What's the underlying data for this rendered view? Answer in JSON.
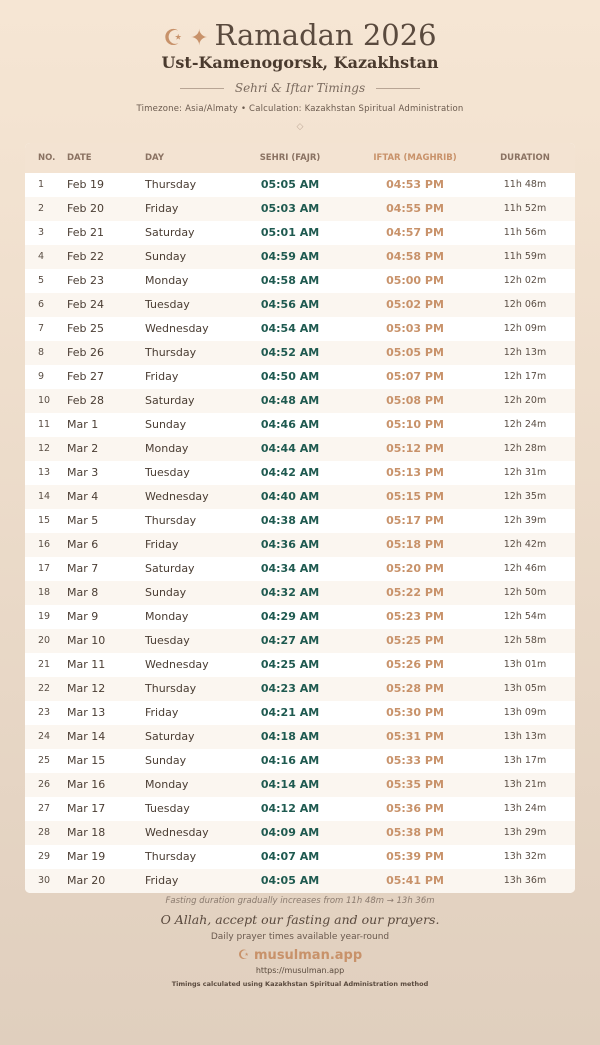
{
  "header": {
    "icons": [
      "crescent-star-icon",
      "sparkle-icon"
    ],
    "title": "Ramadan 2026",
    "city": "Ust-Kamenogorsk, Kazakhstan",
    "subtitle": "Sehri & Iftar Timings",
    "meta": "Timezone: Asia/Almaty • Calculation: Kazakhstan Spiritual Administration",
    "ornament": "◇"
  },
  "columns": [
    "NO.",
    "DATE",
    "DAY",
    "SEHRI (FAJR)",
    "IFTAR (MAGHRIB)",
    "DURATION"
  ],
  "rows": [
    [
      "1",
      "Feb 19",
      "Thursday",
      "05:05 AM",
      "04:53 PM",
      "11h 48m"
    ],
    [
      "2",
      "Feb 20",
      "Friday",
      "05:03 AM",
      "04:55 PM",
      "11h 52m"
    ],
    [
      "3",
      "Feb 21",
      "Saturday",
      "05:01 AM",
      "04:57 PM",
      "11h 56m"
    ],
    [
      "4",
      "Feb 22",
      "Sunday",
      "04:59 AM",
      "04:58 PM",
      "11h 59m"
    ],
    [
      "5",
      "Feb 23",
      "Monday",
      "04:58 AM",
      "05:00 PM",
      "12h 02m"
    ],
    [
      "6",
      "Feb 24",
      "Tuesday",
      "04:56 AM",
      "05:02 PM",
      "12h 06m"
    ],
    [
      "7",
      "Feb 25",
      "Wednesday",
      "04:54 AM",
      "05:03 PM",
      "12h 09m"
    ],
    [
      "8",
      "Feb 26",
      "Thursday",
      "04:52 AM",
      "05:05 PM",
      "12h 13m"
    ],
    [
      "9",
      "Feb 27",
      "Friday",
      "04:50 AM",
      "05:07 PM",
      "12h 17m"
    ],
    [
      "10",
      "Feb 28",
      "Saturday",
      "04:48 AM",
      "05:08 PM",
      "12h 20m"
    ],
    [
      "11",
      "Mar 1",
      "Sunday",
      "04:46 AM",
      "05:10 PM",
      "12h 24m"
    ],
    [
      "12",
      "Mar 2",
      "Monday",
      "04:44 AM",
      "05:12 PM",
      "12h 28m"
    ],
    [
      "13",
      "Mar 3",
      "Tuesday",
      "04:42 AM",
      "05:13 PM",
      "12h 31m"
    ],
    [
      "14",
      "Mar 4",
      "Wednesday",
      "04:40 AM",
      "05:15 PM",
      "12h 35m"
    ],
    [
      "15",
      "Mar 5",
      "Thursday",
      "04:38 AM",
      "05:17 PM",
      "12h 39m"
    ],
    [
      "16",
      "Mar 6",
      "Friday",
      "04:36 AM",
      "05:18 PM",
      "12h 42m"
    ],
    [
      "17",
      "Mar 7",
      "Saturday",
      "04:34 AM",
      "05:20 PM",
      "12h 46m"
    ],
    [
      "18",
      "Mar 8",
      "Sunday",
      "04:32 AM",
      "05:22 PM",
      "12h 50m"
    ],
    [
      "19",
      "Mar 9",
      "Monday",
      "04:29 AM",
      "05:23 PM",
      "12h 54m"
    ],
    [
      "20",
      "Mar 10",
      "Tuesday",
      "04:27 AM",
      "05:25 PM",
      "12h 58m"
    ],
    [
      "21",
      "Mar 11",
      "Wednesday",
      "04:25 AM",
      "05:26 PM",
      "13h 01m"
    ],
    [
      "22",
      "Mar 12",
      "Thursday",
      "04:23 AM",
      "05:28 PM",
      "13h 05m"
    ],
    [
      "23",
      "Mar 13",
      "Friday",
      "04:21 AM",
      "05:30 PM",
      "13h 09m"
    ],
    [
      "24",
      "Mar 14",
      "Saturday",
      "04:18 AM",
      "05:31 PM",
      "13h 13m"
    ],
    [
      "25",
      "Mar 15",
      "Sunday",
      "04:16 AM",
      "05:33 PM",
      "13h 17m"
    ],
    [
      "26",
      "Mar 16",
      "Monday",
      "04:14 AM",
      "05:35 PM",
      "13h 21m"
    ],
    [
      "27",
      "Mar 17",
      "Tuesday",
      "04:12 AM",
      "05:36 PM",
      "13h 24m"
    ],
    [
      "28",
      "Mar 18",
      "Wednesday",
      "04:09 AM",
      "05:38 PM",
      "13h 29m"
    ],
    [
      "29",
      "Mar 19",
      "Thursday",
      "04:07 AM",
      "05:39 PM",
      "13h 32m"
    ],
    [
      "30",
      "Mar 20",
      "Friday",
      "04:05 AM",
      "05:41 PM",
      "13h 36m"
    ]
  ],
  "footer": {
    "note": "Fasting duration gradually increases from 11h 48m → 13h 36m",
    "prayer": "O Allah, accept our fasting and our prayers.",
    "daily": "Daily prayer times available year-round",
    "brand": "musulman.app",
    "url": "https://musulman.app",
    "method": "Timings calculated using Kazakhstan Spiritual Administration method"
  },
  "colors": {
    "sehri": "#1f5a50",
    "iftar": "#c8926a",
    "accent": "#c8926a"
  }
}
